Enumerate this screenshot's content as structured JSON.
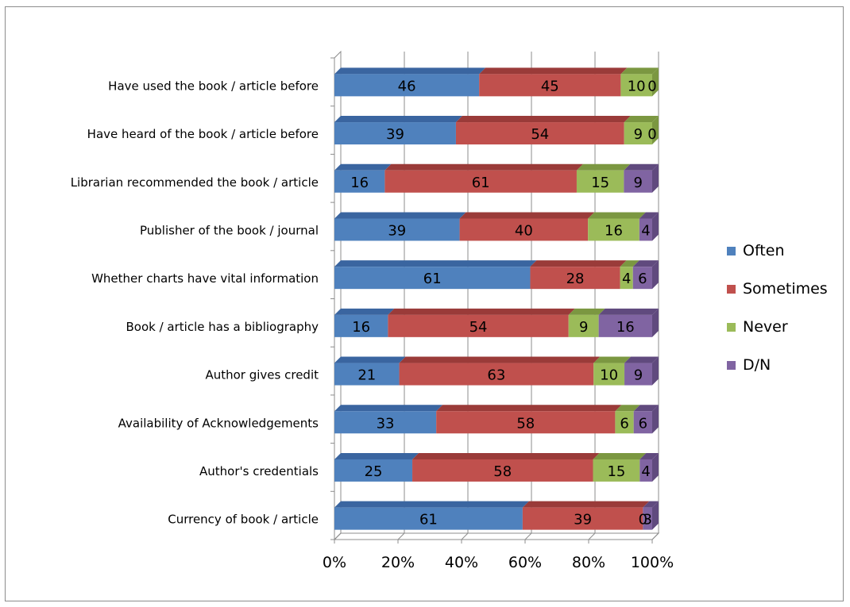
{
  "chart_data": {
    "type": "bar",
    "orientation": "horizontal",
    "stacking": "percent",
    "three_d": true,
    "title": "",
    "xlabel": "",
    "ylabel": "",
    "categories": [
      "Have used the book / article before",
      "Have heard of the book / article before",
      "Librarian recommended the book / article",
      "Publisher of the book / journal",
      "Whether charts have vital information",
      "Book / article has a bibliography",
      "Author gives credit",
      "Availability of Acknowledgements",
      "Author's credentials",
      "Currency of book / article"
    ],
    "series": [
      {
        "name": "Often",
        "color": "#4f81bd",
        "top_color": "#3a65a0",
        "values": [
          46,
          39,
          16,
          39,
          61,
          16,
          21,
          33,
          25,
          61
        ]
      },
      {
        "name": "Sometimes",
        "color": "#c0504d",
        "top_color": "#9a3b39",
        "values": [
          45,
          54,
          61,
          40,
          28,
          54,
          63,
          58,
          58,
          39
        ]
      },
      {
        "name": "Never",
        "color": "#9bbb59",
        "top_color": "#7b9741",
        "values": [
          10,
          9,
          15,
          16,
          4,
          9,
          10,
          6,
          15,
          0
        ]
      },
      {
        "name": "D/N",
        "color": "#8064a2",
        "top_color": "#604a7e",
        "values": [
          0,
          0,
          9,
          4,
          6,
          16,
          9,
          6,
          4,
          3
        ]
      }
    ],
    "x_ticks": [
      "0%",
      "20%",
      "40%",
      "60%",
      "80%",
      "100%"
    ],
    "xlim": [
      0,
      100
    ],
    "grid": true,
    "legend_position": "right"
  }
}
